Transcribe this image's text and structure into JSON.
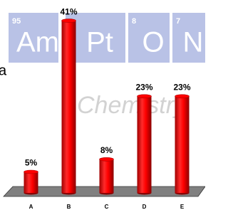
{
  "chart_data": {
    "type": "bar",
    "categories": [
      "A",
      "B",
      "C",
      "D",
      "E"
    ],
    "values": [
      5,
      41,
      8,
      23,
      23
    ],
    "value_labels": [
      "5%",
      "41%",
      "8%",
      "23%",
      "23%"
    ],
    "color": "#ff0000"
  },
  "background": {
    "tiles": [
      {
        "number": "95",
        "symbol": "Am"
      },
      {
        "symbol": "Pt"
      },
      {
        "number": "8",
        "symbol": "O"
      },
      {
        "number": "7",
        "symbol": "N"
      }
    ],
    "fragment": "a",
    "watermark": "Chemistry"
  }
}
